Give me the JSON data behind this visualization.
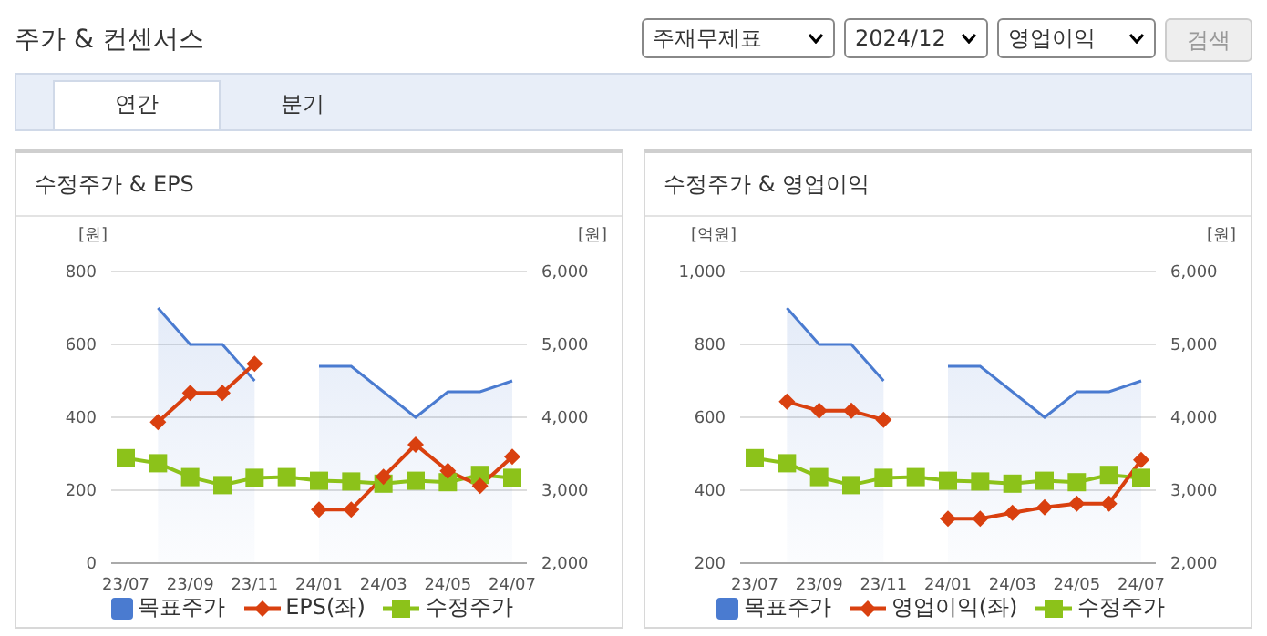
{
  "chart_data": [
    {
      "type": "other",
      "title": "주가 & 컨센서스",
      "annotations": [
        "주재무제표",
        "2024/12",
        "영업이익",
        "검색",
        "연간",
        "분기"
      ]
    },
    {
      "type": "line",
      "title": "수정주가 & EPS",
      "ylabel": "[원]",
      "y2label": "[원]",
      "categories": [
        "23/07",
        null,
        "23/09",
        null,
        "23/11",
        null,
        "24/01",
        null,
        "24/03",
        null,
        "24/05",
        null,
        "24/07"
      ],
      "ylim": [
        0,
        800
      ],
      "yticks": [
        0,
        200,
        400,
        600,
        800
      ],
      "y2lim": [
        2000,
        6000
      ],
      "y2ticks": [
        {
          "value": 2000,
          "label": "2,000"
        },
        {
          "value": 3000,
          "label": "3,000"
        },
        {
          "value": 4000,
          "label": "4,000"
        },
        {
          "value": 5000,
          "label": "5,000"
        },
        {
          "value": 6000,
          "label": "6,000"
        }
      ],
      "grid": "y",
      "legend": "bottom",
      "series": [
        {
          "name": "목표주가",
          "type": "area",
          "axis": "y2",
          "color": "#4a7bd0",
          "marker": "none",
          "values": [
            null,
            5500,
            5000,
            5000,
            4500,
            null,
            4700,
            4700,
            4350,
            4000,
            4350,
            4350,
            4500
          ]
        },
        {
          "name": "EPS(좌)",
          "type": "line",
          "color": "#d9400f",
          "marker": "diamond",
          "values": [
            null,
            387,
            467,
            467,
            547,
            null,
            147,
            147,
            237,
            325,
            253,
            212,
            292
          ]
        },
        {
          "name": "수정주가",
          "type": "line",
          "axis": "y2",
          "color": "#8cc21a",
          "marker": "square",
          "values": [
            3440,
            3370,
            3180,
            3070,
            3170,
            3180,
            3130,
            3120,
            3090,
            3130,
            3110,
            3210,
            3170
          ]
        }
      ]
    },
    {
      "type": "line",
      "title": "수정주가 & 영업이익",
      "ylabel": "[억원]",
      "y2label": "[원]",
      "categories": [
        "23/07",
        null,
        "23/09",
        null,
        "23/11",
        null,
        "24/01",
        null,
        "24/03",
        null,
        "24/05",
        null,
        "24/07"
      ],
      "ylim": [
        200,
        1000
      ],
      "yticks": [
        200,
        400,
        600,
        800,
        {
          "value": 1000,
          "label": "1,000"
        }
      ],
      "y2lim": [
        2000,
        6000
      ],
      "y2ticks": [
        {
          "value": 2000,
          "label": "2,000"
        },
        {
          "value": 3000,
          "label": "3,000"
        },
        {
          "value": 4000,
          "label": "4,000"
        },
        {
          "value": 5000,
          "label": "5,000"
        },
        {
          "value": 6000,
          "label": "6,000"
        }
      ],
      "grid": "y",
      "legend": "bottom",
      "series": [
        {
          "name": "목표주가",
          "type": "area",
          "axis": "y2",
          "color": "#4a7bd0",
          "marker": "none",
          "values": [
            null,
            5500,
            5000,
            5000,
            4500,
            null,
            4700,
            4700,
            4350,
            4000,
            4350,
            4350,
            4500
          ]
        },
        {
          "name": "영업이익(좌)",
          "type": "line",
          "color": "#d9400f",
          "marker": "diamond",
          "values": [
            null,
            643,
            618,
            618,
            593,
            null,
            322,
            322,
            338,
            353,
            363,
            363,
            483
          ]
        },
        {
          "name": "수정주가",
          "type": "line",
          "axis": "y2",
          "color": "#8cc21a",
          "marker": "square",
          "values": [
            3440,
            3370,
            3180,
            3070,
            3170,
            3180,
            3130,
            3120,
            3090,
            3130,
            3110,
            3210,
            3170
          ]
        }
      ]
    }
  ]
}
